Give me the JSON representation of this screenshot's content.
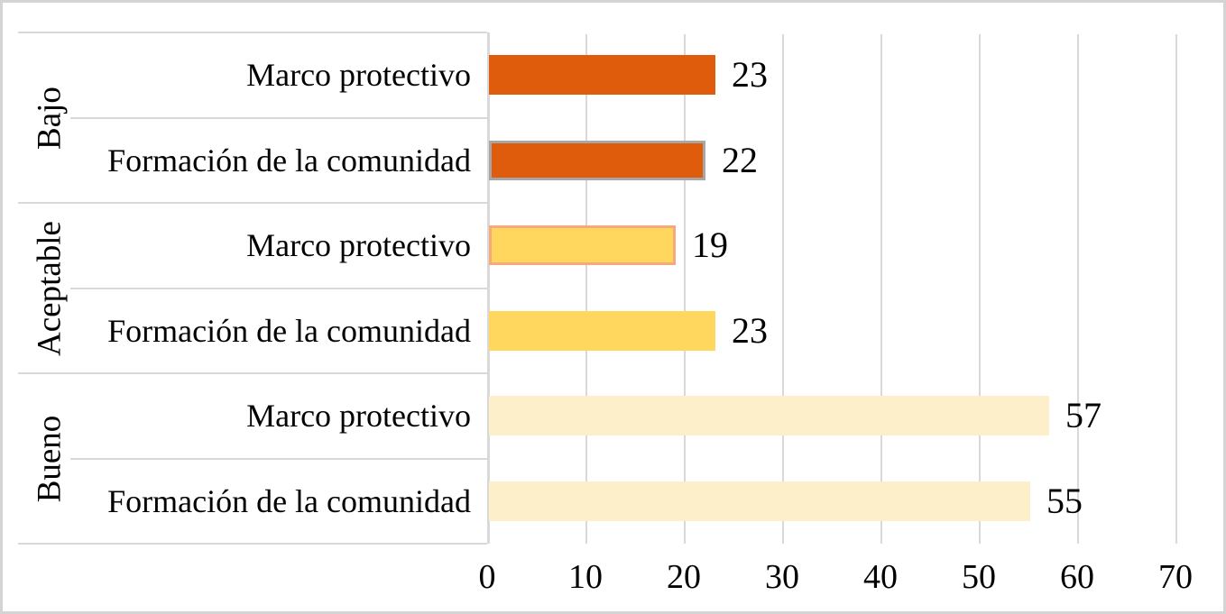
{
  "chart_data": {
    "type": "bar",
    "orientation": "horizontal",
    "title": "",
    "xlabel": "",
    "ylabel": "",
    "xlim": [
      0,
      73.5
    ],
    "x_ticks": [
      0,
      10,
      20,
      30,
      40,
      50,
      60,
      70
    ],
    "grid": true,
    "legend": "none",
    "groups": [
      {
        "label": "Bajo",
        "items": [
          {
            "label": "Marco protectivo",
            "value": 23,
            "fill": "#de5c0b",
            "border": "none"
          },
          {
            "label": "Formación de la comunidad",
            "value": 22,
            "fill": "#de5c0b",
            "border": "#a6a6a6"
          }
        ]
      },
      {
        "label": "Aceptable",
        "items": [
          {
            "label": "Marco protectivo",
            "value": 19,
            "fill": "#ffd75e",
            "border": "#f6a97d"
          },
          {
            "label": "Formación de la comunidad",
            "value": 23,
            "fill": "#ffd75e",
            "border": "none"
          }
        ]
      },
      {
        "label": "Bueno",
        "items": [
          {
            "label": "Marco protectivo",
            "value": 57,
            "fill": "#fcefca",
            "border": "none"
          },
          {
            "label": "Formación de la comunidad",
            "value": 55,
            "fill": "#fcefca",
            "border": "none"
          }
        ]
      }
    ],
    "colors": {
      "gridline": "#d9d9d9",
      "frame": "#d4d4d4",
      "text": "#000000",
      "background": "#ffffff"
    }
  }
}
